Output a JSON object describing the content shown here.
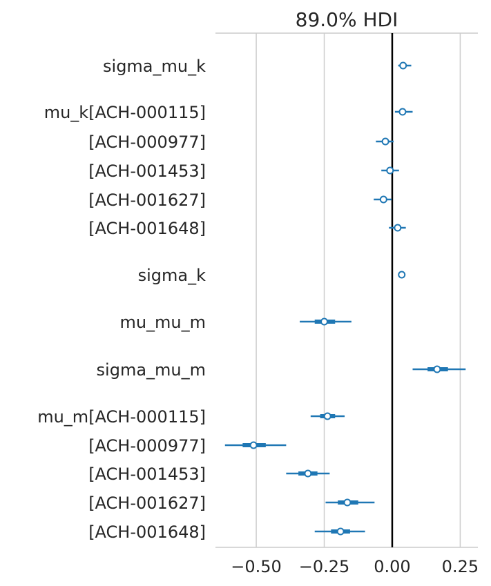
{
  "chart_data": {
    "type": "forest",
    "title": "89.0% HDI",
    "xlim": [
      -0.65,
      0.315
    ],
    "xticks": [
      -0.5,
      -0.25,
      0.0,
      0.25
    ],
    "xtick_labels": [
      "−0.50",
      "−0.25",
      "0.00",
      "0.25"
    ],
    "reference_line_x": 0.0,
    "grid": "vertical",
    "series_color": "#1f77b4",
    "groups": [
      {
        "label": "sigma_mu_k",
        "rows": [
          {
            "label": "sigma_mu_k",
            "mean": 0.04,
            "inner": [
              0.03,
              0.05
            ],
            "outer": [
              0.022,
              0.07
            ]
          }
        ]
      },
      {
        "label": "mu_k",
        "rows": [
          {
            "label": "mu_k[ACH-000115]",
            "mean": 0.038,
            "inner": [
              0.028,
              0.048
            ],
            "outer": [
              0.01,
              0.075
            ]
          },
          {
            "label": "[ACH-000977]",
            "mean": -0.025,
            "inner": [
              -0.035,
              -0.015
            ],
            "outer": [
              -0.06,
              0.005
            ]
          },
          {
            "label": "[ACH-001453]",
            "mean": -0.008,
            "inner": [
              -0.018,
              0.002
            ],
            "outer": [
              -0.04,
              0.025
            ]
          },
          {
            "label": "[ACH-001627]",
            "mean": -0.032,
            "inner": [
              -0.042,
              -0.022
            ],
            "outer": [
              -0.068,
              -0.002
            ]
          },
          {
            "label": "[ACH-001648]",
            "mean": 0.02,
            "inner": [
              0.01,
              0.03
            ],
            "outer": [
              -0.012,
              0.05
            ]
          }
        ]
      },
      {
        "label": "sigma_k",
        "rows": [
          {
            "label": "sigma_k",
            "mean": 0.035,
            "inner": [
              0.033,
              0.037
            ],
            "outer": [
              0.031,
              0.039
            ]
          }
        ]
      },
      {
        "label": "mu_mu_m",
        "rows": [
          {
            "label": "mu_mu_m",
            "mean": -0.25,
            "inner": [
              -0.285,
              -0.21
            ],
            "outer": [
              -0.34,
              -0.15
            ]
          }
        ]
      },
      {
        "label": "sigma_mu_m",
        "rows": [
          {
            "label": "sigma_mu_m",
            "mean": 0.165,
            "inner": [
              0.13,
              0.205
            ],
            "outer": [
              0.075,
              0.27
            ]
          }
        ]
      },
      {
        "label": "mu_m",
        "rows": [
          {
            "label": "mu_m[ACH-000115]",
            "mean": -0.238,
            "inner": [
              -0.265,
              -0.21
            ],
            "outer": [
              -0.3,
              -0.175
            ]
          },
          {
            "label": "[ACH-000977]",
            "mean": -0.51,
            "inner": [
              -0.55,
              -0.465
            ],
            "outer": [
              -0.615,
              -0.39
            ]
          },
          {
            "label": "[ACH-001453]",
            "mean": -0.31,
            "inner": [
              -0.345,
              -0.275
            ],
            "outer": [
              -0.39,
              -0.23
            ]
          },
          {
            "label": "[ACH-001627]",
            "mean": -0.165,
            "inner": [
              -0.2,
              -0.125
            ],
            "outer": [
              -0.245,
              -0.065
            ]
          },
          {
            "label": "[ACH-001648]",
            "mean": -0.19,
            "inner": [
              -0.225,
              -0.155
            ],
            "outer": [
              -0.285,
              -0.1
            ]
          }
        ]
      }
    ]
  }
}
